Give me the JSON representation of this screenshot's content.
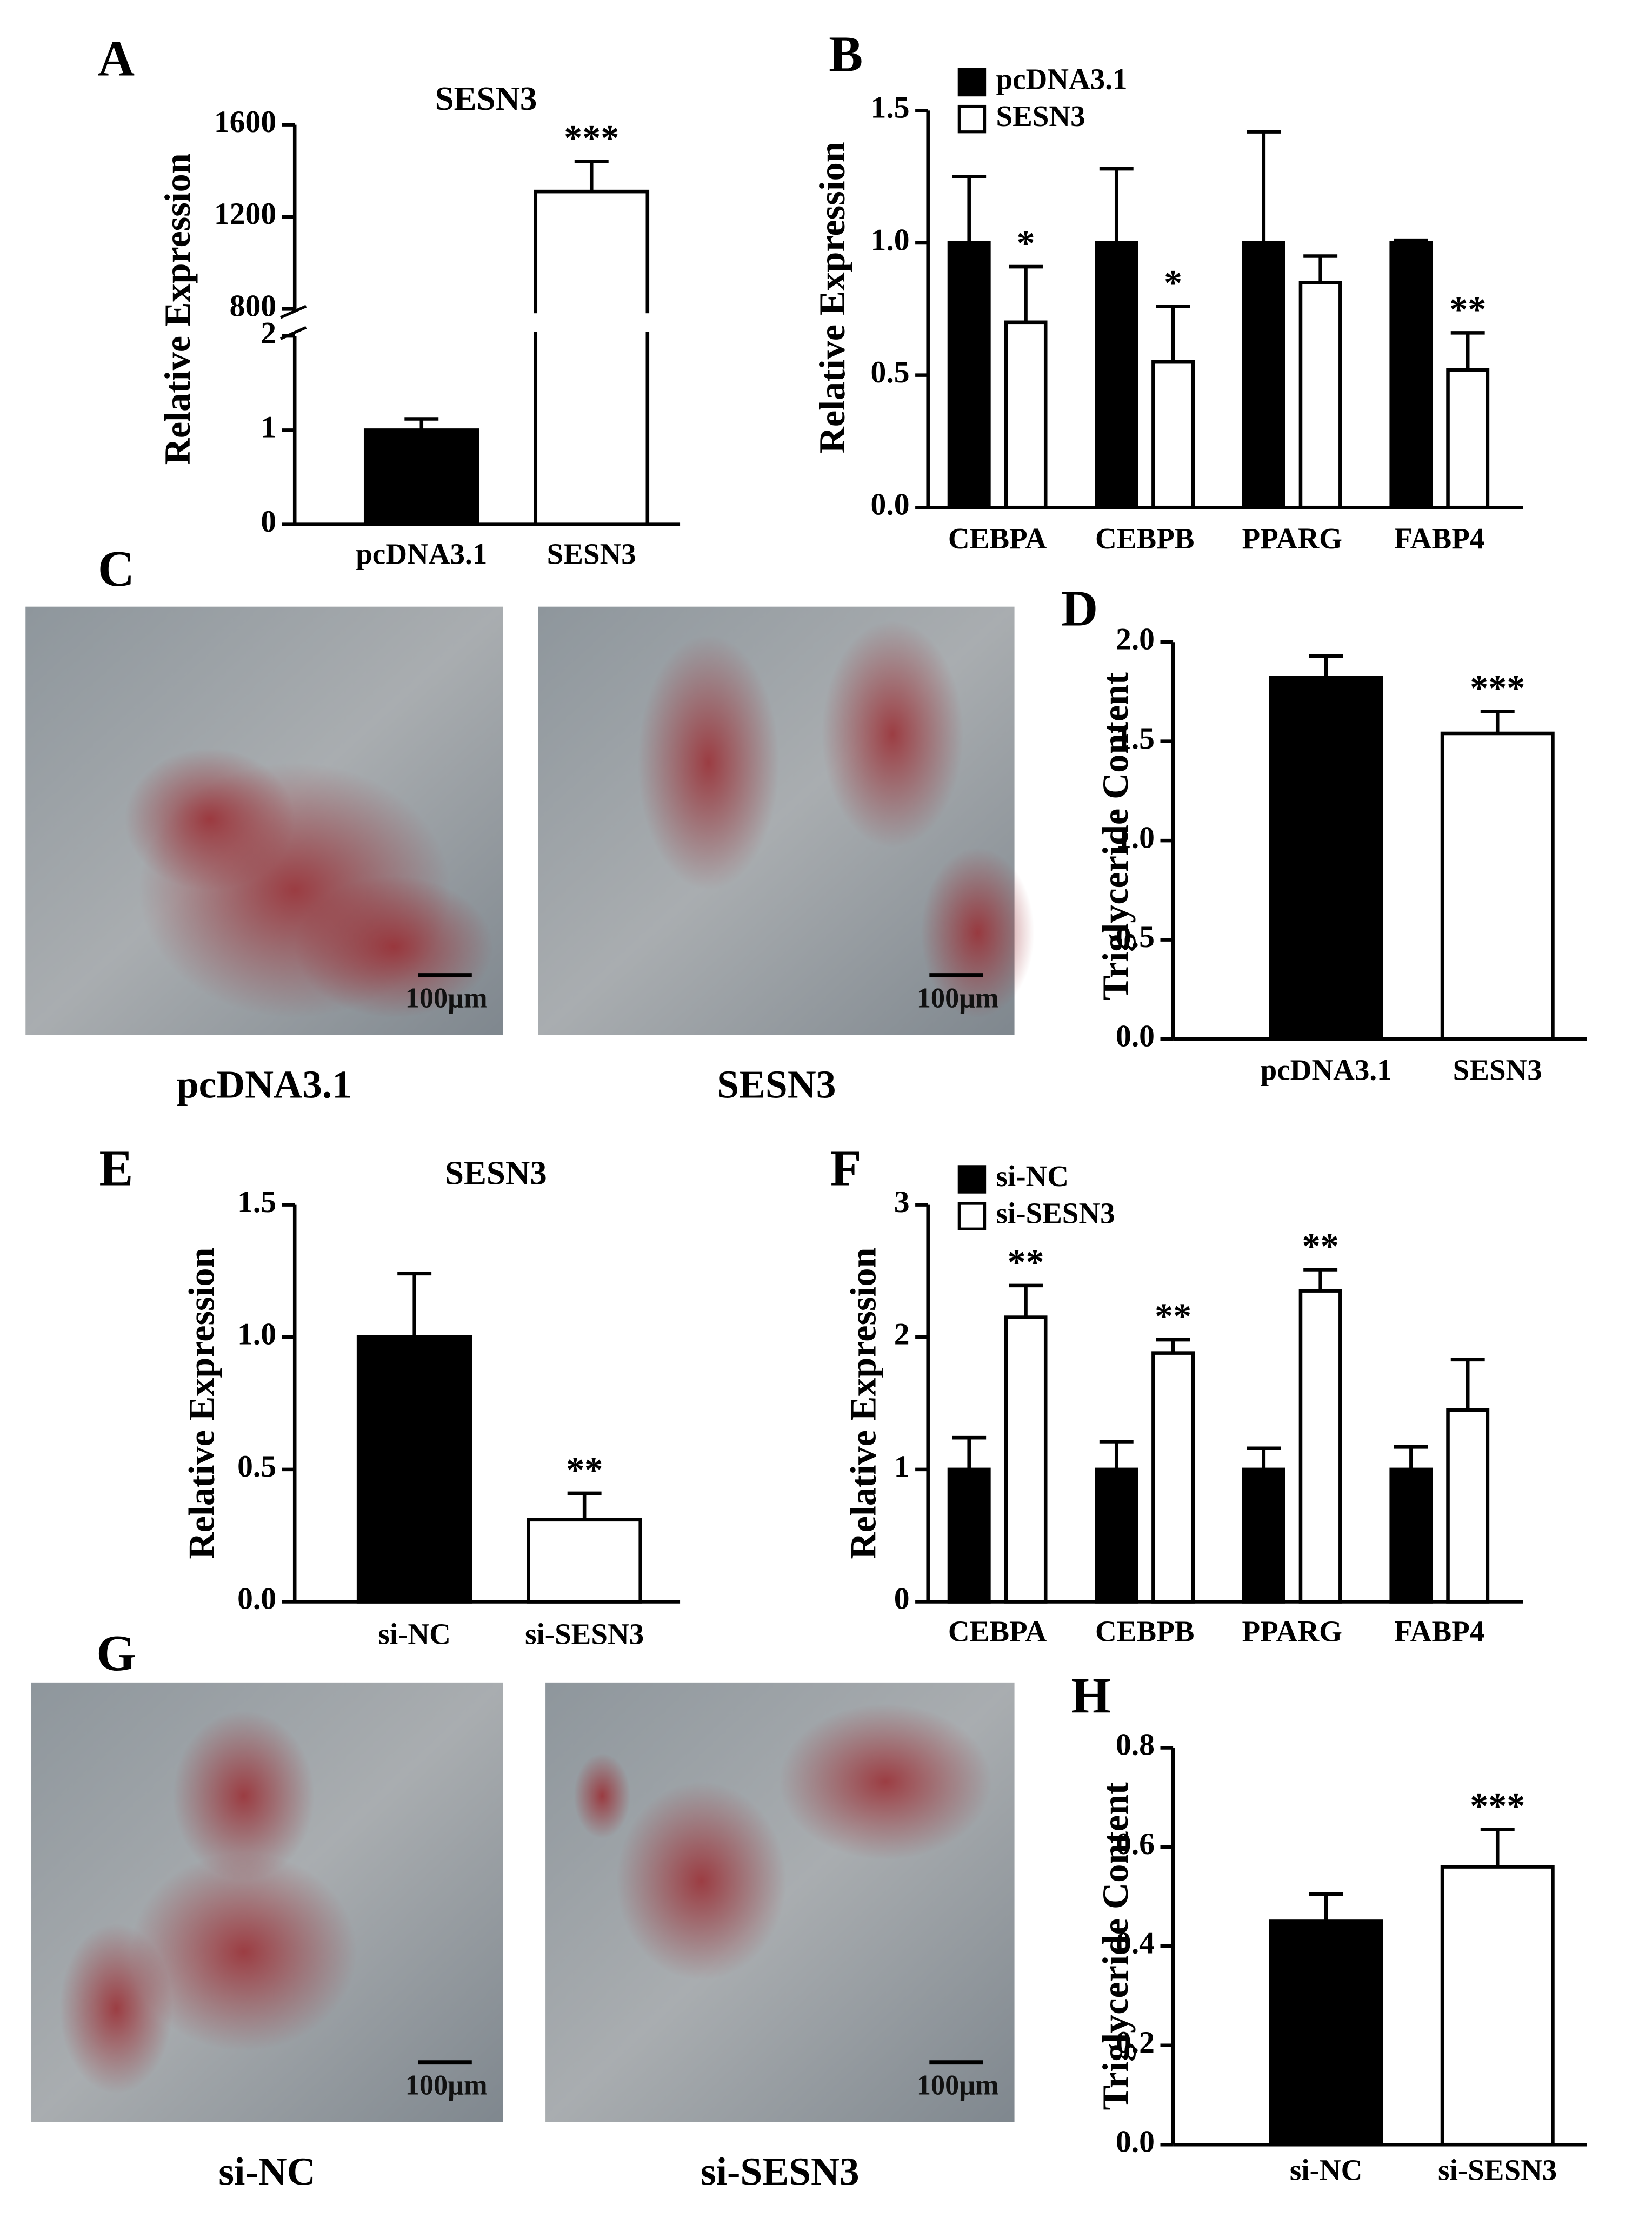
{
  "panel_labels": [
    "A",
    "B",
    "C",
    "D",
    "E",
    "F",
    "G",
    "H"
  ],
  "micrographs": [
    {
      "caption": "pcDNA3.1",
      "scale_bar": "100μm"
    },
    {
      "caption": "SESN3",
      "scale_bar": "100μm"
    },
    {
      "caption": "si-NC",
      "scale_bar": "100μm"
    },
    {
      "caption": "si-SESN3",
      "scale_bar": "100μm"
    }
  ],
  "chart_data": [
    {
      "type": "bar",
      "title": "SESN3",
      "ylabel": "Relative Expression",
      "categories": [
        "pcDNA3.1",
        "SESN3"
      ],
      "values": [
        1,
        1310
      ],
      "errors": [
        0.12,
        130
      ],
      "colors": [
        "#000000",
        "#ffffff"
      ],
      "significance": [
        null,
        "***"
      ],
      "ylim_segments": [
        [
          0,
          2
        ],
        [
          800,
          1600
        ]
      ],
      "yticks": [
        0,
        1,
        2,
        800,
        1200,
        1600
      ]
    },
    {
      "type": "bar",
      "ylabel": "Relative Expression",
      "categories": [
        "CEBPA",
        "CEBPB",
        "PPARG",
        "FABP4"
      ],
      "series": [
        {
          "name": "pcDNA3.1",
          "color": "#000000",
          "values": [
            1,
            1,
            1,
            1
          ],
          "errors": [
            0.25,
            0.28,
            0.42,
            0.01
          ],
          "significance": [
            null,
            null,
            null,
            null
          ]
        },
        {
          "name": "SESN3",
          "color": "#ffffff",
          "values": [
            0.7,
            0.55,
            0.85,
            0.52
          ],
          "errors": [
            0.21,
            0.21,
            0.1,
            0.14
          ],
          "significance": [
            "*",
            "*",
            null,
            "**"
          ]
        }
      ],
      "ylim": [
        0,
        1.5
      ],
      "yticks": [
        {
          "value": 0,
          "label": "0.0"
        },
        0.5,
        {
          "value": 1,
          "label": "1.0"
        },
        1.5
      ]
    },
    {
      "type": "bar",
      "ylabel": "Triglyceride Content",
      "categories": [
        "pcDNA3.1",
        "SESN3"
      ],
      "values": [
        1.82,
        1.54
      ],
      "errors": [
        0.11,
        0.11
      ],
      "colors": [
        "#000000",
        "#ffffff"
      ],
      "significance": [
        null,
        "***"
      ],
      "ylim": [
        0,
        2
      ],
      "yticks": [
        {
          "value": 0,
          "label": "0.0"
        },
        0.5,
        {
          "value": 1,
          "label": "1.0"
        },
        1.5,
        {
          "value": 2,
          "label": "2.0"
        }
      ]
    },
    {
      "type": "bar",
      "title": "SESN3",
      "ylabel": "Relative Expression",
      "categories": [
        "si-NC",
        "si-SESN3"
      ],
      "values": [
        1,
        0.31
      ],
      "errors": [
        0.24,
        0.1
      ],
      "colors": [
        "#000000",
        "#ffffff"
      ],
      "significance": [
        null,
        "**"
      ],
      "ylim": [
        0,
        1.5
      ],
      "yticks": [
        {
          "value": 0,
          "label": "0.0"
        },
        0.5,
        {
          "value": 1,
          "label": "1.0"
        },
        1.5
      ]
    },
    {
      "type": "bar",
      "ylabel": "Relative Expression",
      "categories": [
        "CEBPA",
        "CEBPB",
        "PPARG",
        "FABP4"
      ],
      "series": [
        {
          "name": "si-NC",
          "color": "#000000",
          "values": [
            1,
            1,
            1,
            1
          ],
          "errors": [
            0.24,
            0.21,
            0.16,
            0.17
          ],
          "significance": [
            null,
            null,
            null,
            null
          ]
        },
        {
          "name": "si-SESN3",
          "color": "#ffffff",
          "values": [
            2.15,
            1.88,
            2.35,
            1.45
          ],
          "errors": [
            0.24,
            0.1,
            0.16,
            0.38
          ],
          "significance": [
            "**",
            "**",
            "**",
            null
          ]
        }
      ],
      "ylim": [
        0,
        3
      ],
      "yticks": [
        0,
        1,
        2,
        3
      ]
    },
    {
      "type": "bar",
      "ylabel": "Triglyceride Content",
      "categories": [
        "si-NC",
        "si-SESN3"
      ],
      "values": [
        0.45,
        0.56
      ],
      "errors": [
        0.055,
        0.075
      ],
      "colors": [
        "#000000",
        "#ffffff"
      ],
      "significance": [
        null,
        "***"
      ],
      "ylim": [
        0,
        0.8
      ],
      "yticks": [
        {
          "value": 0,
          "label": "0.0"
        },
        0.2,
        0.4,
        0.6,
        0.8
      ]
    }
  ]
}
